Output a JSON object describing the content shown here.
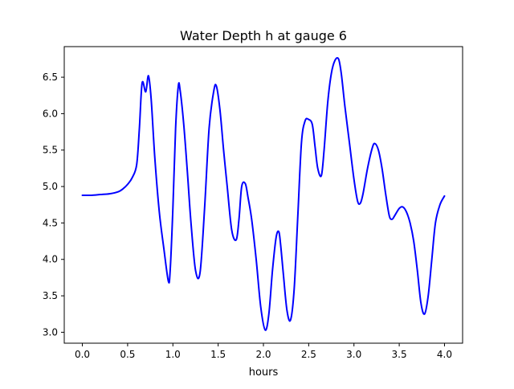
{
  "chart_data": {
    "type": "line",
    "title": "Water Depth h at gauge 6",
    "xlabel": "hours",
    "ylabel": "",
    "xlim": [
      -0.2,
      4.2
    ],
    "ylim": [
      2.85,
      6.92
    ],
    "xticks": [
      0.0,
      0.5,
      1.0,
      1.5,
      2.0,
      2.5,
      3.0,
      3.5,
      4.0
    ],
    "xtick_labels": [
      "0.0",
      "0.5",
      "1.0",
      "1.5",
      "2.0",
      "2.5",
      "3.0",
      "3.5",
      "4.0"
    ],
    "yticks": [
      3.0,
      3.5,
      4.0,
      4.5,
      5.0,
      5.5,
      6.0,
      6.5
    ],
    "ytick_labels": [
      "3.0",
      "3.5",
      "4.0",
      "4.5",
      "5.0",
      "5.5",
      "6.0",
      "6.5"
    ],
    "grid": false,
    "series": [
      {
        "color": "#0000ff",
        "x": [
          0.0,
          0.1,
          0.2,
          0.3,
          0.4,
          0.45,
          0.5,
          0.55,
          0.6,
          0.63,
          0.66,
          0.7,
          0.73,
          0.76,
          0.8,
          0.85,
          0.9,
          0.95,
          0.97,
          1.0,
          1.03,
          1.06,
          1.08,
          1.12,
          1.16,
          1.2,
          1.25,
          1.3,
          1.35,
          1.4,
          1.45,
          1.48,
          1.52,
          1.56,
          1.6,
          1.65,
          1.7,
          1.73,
          1.76,
          1.8,
          1.83,
          1.87,
          1.92,
          1.97,
          2.02,
          2.06,
          2.1,
          2.14,
          2.17,
          2.19,
          2.22,
          2.26,
          2.3,
          2.34,
          2.38,
          2.42,
          2.46,
          2.5,
          2.54,
          2.57,
          2.6,
          2.64,
          2.67,
          2.71,
          2.75,
          2.79,
          2.83,
          2.86,
          2.9,
          2.95,
          3.0,
          3.04,
          3.07,
          3.1,
          3.15,
          3.2,
          3.23,
          3.27,
          3.31,
          3.35,
          3.39,
          3.42,
          3.45,
          3.5,
          3.54,
          3.58,
          3.62,
          3.66,
          3.7,
          3.74,
          3.78,
          3.82,
          3.86,
          3.9,
          3.95,
          4.0
        ],
        "y": [
          4.88,
          4.88,
          4.89,
          4.9,
          4.93,
          4.97,
          5.03,
          5.12,
          5.3,
          5.8,
          6.42,
          6.3,
          6.52,
          6.2,
          5.4,
          4.65,
          4.15,
          3.7,
          3.85,
          4.7,
          5.8,
          6.38,
          6.32,
          5.85,
          5.2,
          4.5,
          3.85,
          3.82,
          4.7,
          5.8,
          6.3,
          6.38,
          6.05,
          5.5,
          5.0,
          4.4,
          4.27,
          4.55,
          5.0,
          5.04,
          4.85,
          4.55,
          4.0,
          3.35,
          3.03,
          3.25,
          3.85,
          4.3,
          4.38,
          4.2,
          3.8,
          3.3,
          3.17,
          3.6,
          4.6,
          5.6,
          5.9,
          5.92,
          5.85,
          5.55,
          5.25,
          5.15,
          5.5,
          6.15,
          6.55,
          6.73,
          6.75,
          6.55,
          6.1,
          5.6,
          5.1,
          4.8,
          4.77,
          4.9,
          5.25,
          5.52,
          5.59,
          5.5,
          5.25,
          4.9,
          4.6,
          4.55,
          4.6,
          4.7,
          4.72,
          4.65,
          4.5,
          4.25,
          3.85,
          3.4,
          3.25,
          3.5,
          4.0,
          4.5,
          4.75,
          4.87
        ]
      }
    ]
  }
}
